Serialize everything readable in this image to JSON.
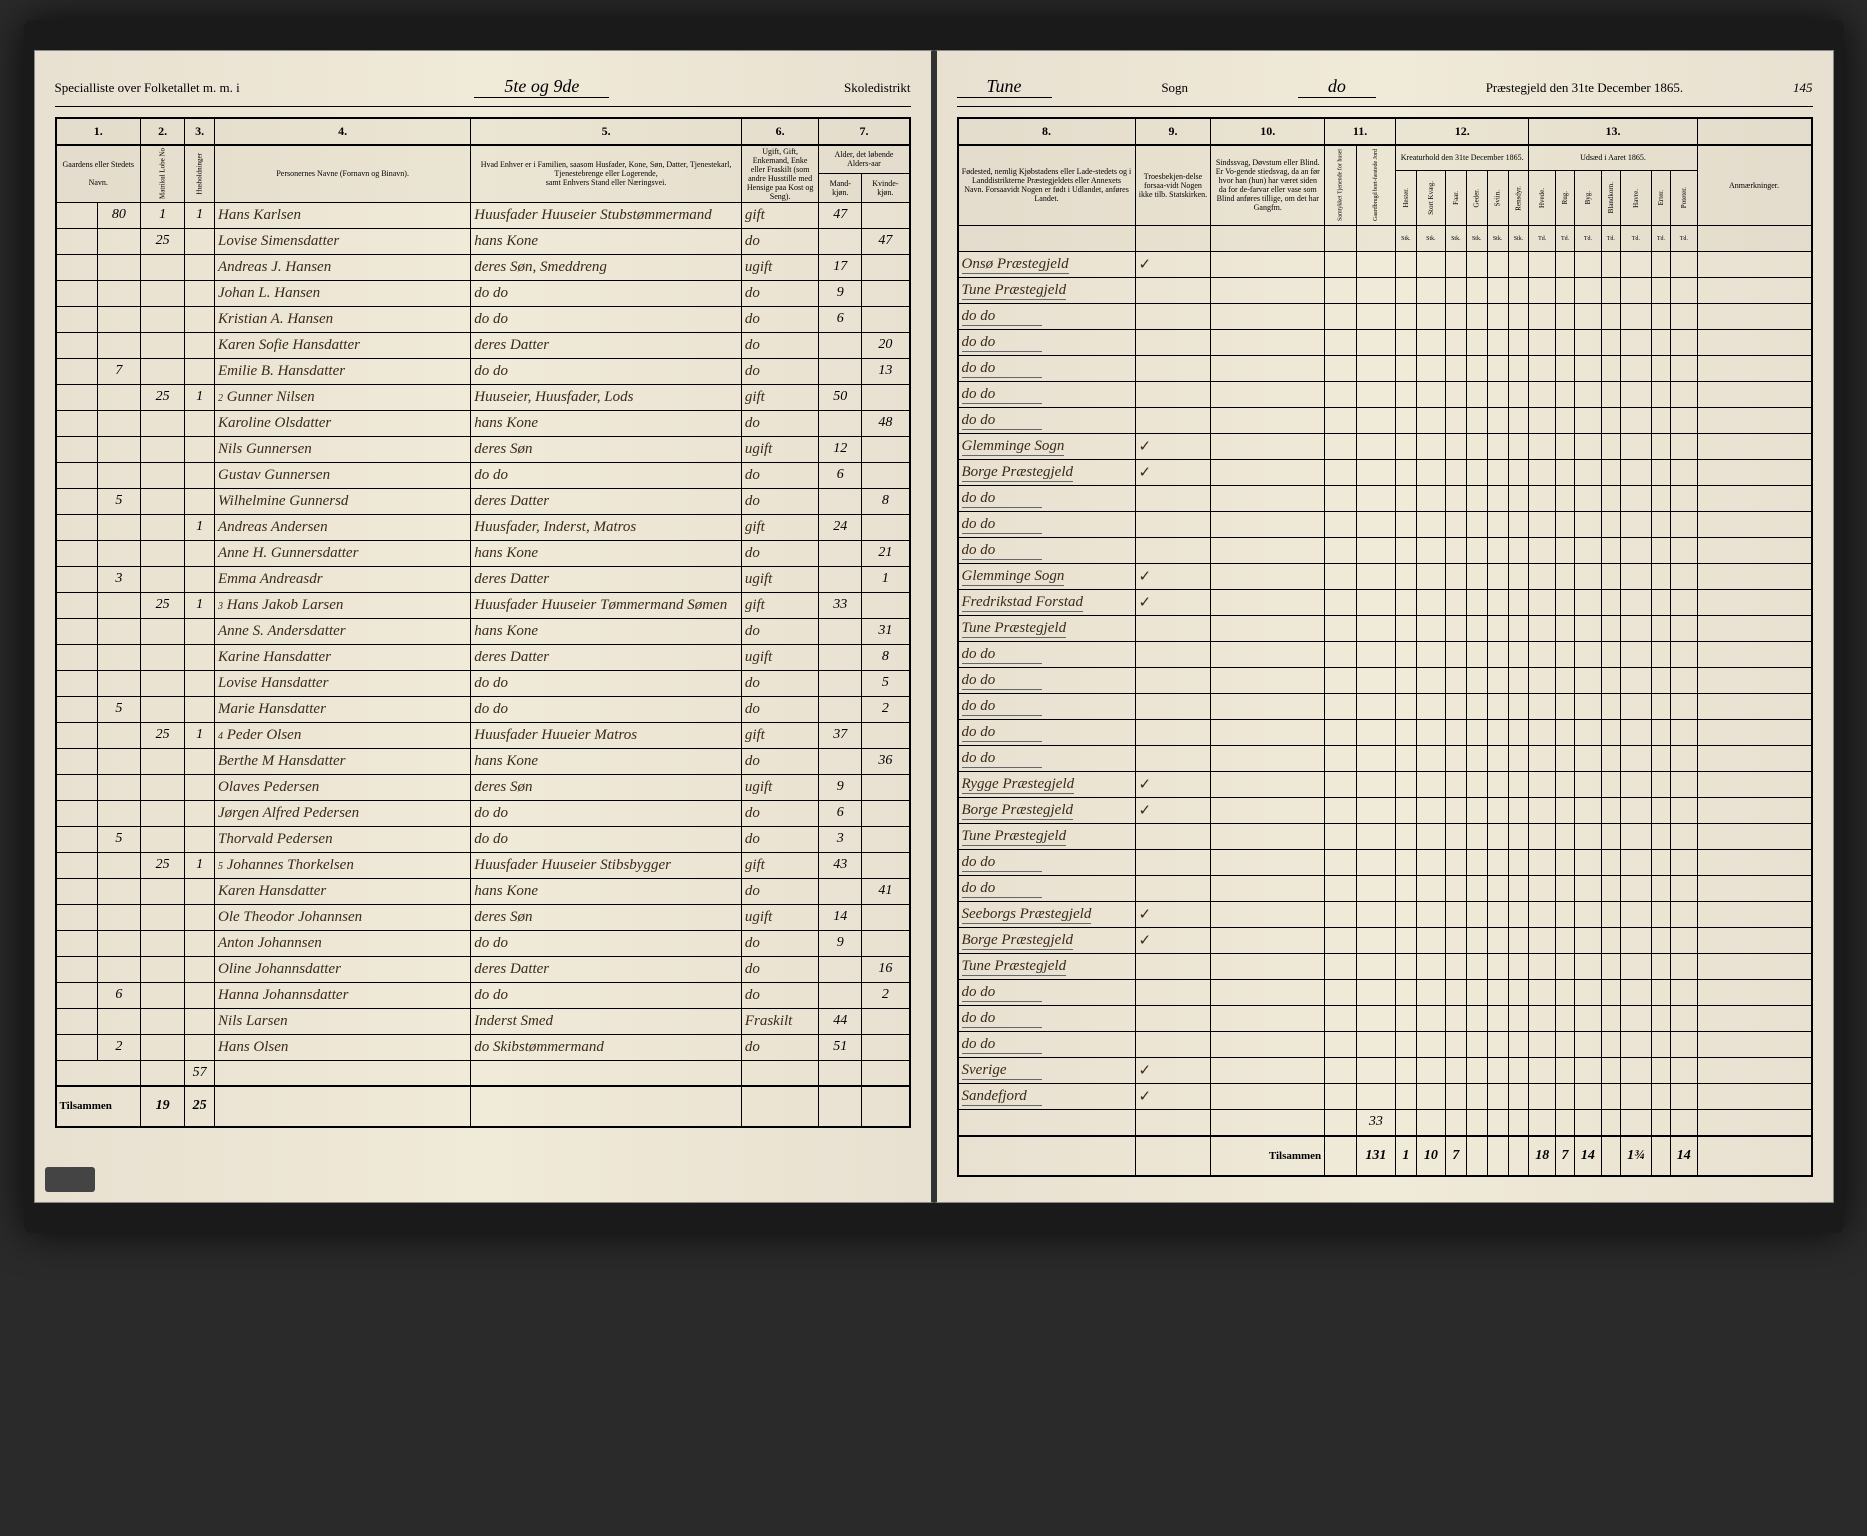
{
  "header": {
    "left_prefix": "Specialliste over Folketallet m. m. i",
    "district": "5te og 9de",
    "left_suffix": "Skoledistrikt",
    "right_sogn_label": "Sogn",
    "sogn": "Tune",
    "do": "do",
    "right_suffix": "Præstegjeld den 31te December 1865.",
    "page_num": "145"
  },
  "columns_left": {
    "c1": "1.",
    "c2": "2.",
    "c3": "3.",
    "c4": "4.",
    "c5": "5.",
    "c6": "6.",
    "c7": "7.",
    "h1": "Gaardens eller Stedets",
    "h1b": "Navn.",
    "h2a": "Matrikul Lobe No",
    "h2b": "Husholdninger",
    "h3": "Personernes Navne (Fornavn og Binavn).",
    "h4a": "Hvad Enhver er i Familien, saasom Husfader, Kone, Søn, Datter, Tjenestekarl, Tjenestebrenge eller Logerende,",
    "h4b": "samt Enhvers Stand eller Næringsvei.",
    "h5a": "Ugift, Gift, Enkemand, Enke eller Fraskilt (som andre Husstille med Hensige paa Kost og Seng).",
    "h6a": "Alder, det løbende Alders-aar",
    "h6b": "Mand-kjøn.",
    "h6c": "Kvinde-kjøn."
  },
  "columns_right": {
    "c8": "8.",
    "c9": "9.",
    "c10": "10.",
    "c11": "11.",
    "c12": "12.",
    "c13": "13.",
    "h8": "Fødested, nemlig Kjøbstadens eller Lade-stedets og i Landdistrikterne Præstegjeldets eller Annexets Navn. Forsaavidt Nogen er født i Udlandet, anføres Landet.",
    "h9": "Troesbekjen-delse forsaa-vidt Nogen ikke tilb. Statskirken.",
    "h10": "Sindssvag, Døvstum eller Blind. Er Vo-gende stiedsvag, da an før hvor han (hun) har været siden da for de-farvar eller vase som Blind anføres tillige, om det har Gangfm.",
    "h11a": "Samtykket Tjenende for huset",
    "h11b": "Gaardbrugd bort-fæstede Jord",
    "h12": "Kreaturhold den 31te December 1865.",
    "h12a": "Hester.",
    "h12b": "Stort Kvæg.",
    "h12c": "Faar.",
    "h12d": "Geder.",
    "h12e": "Sviin.",
    "h12f": "Rensdyr.",
    "h13": "Udsæd i Aaret 1865.",
    "h13a": "Hvede.",
    "h13b": "Rug.",
    "h13c": "Byg.",
    "h13d": "Blandkorn.",
    "h13e": "Havre.",
    "h13f": "Erter.",
    "h13g": "Poteter.",
    "h14": "Anmærkninger."
  },
  "rows": [
    {
      "lno": "80",
      "hh": "1",
      "m": "1",
      "name": "Hans Karlsen",
      "rel": "Huusfader Huuseier Stubstømmermand",
      "stat": "gift",
      "age_m": "47",
      "age_k": "",
      "birth": "Onsø Præstegjeld",
      "chk": "✓"
    },
    {
      "lno": "",
      "hh": "25",
      "m": "",
      "name": "Lovise Simensdatter",
      "rel": "hans Kone",
      "stat": "do",
      "age_m": "",
      "age_k": "47",
      "birth": "Tune Præstegjeld",
      "chk": ""
    },
    {
      "lno": "",
      "hh": "",
      "m": "",
      "name": "Andreas J. Hansen",
      "rel": "deres Søn, Smeddreng",
      "stat": "ugift",
      "age_m": "17",
      "age_k": "",
      "birth": "do   do",
      "chk": ""
    },
    {
      "lno": "",
      "hh": "",
      "m": "",
      "name": "Johan L. Hansen",
      "rel": "do   do",
      "stat": "do",
      "age_m": "9",
      "age_k": "",
      "birth": "do   do",
      "chk": ""
    },
    {
      "lno": "",
      "hh": "",
      "m": "",
      "name": "Kristian A. Hansen",
      "rel": "do   do",
      "stat": "do",
      "age_m": "6",
      "age_k": "",
      "birth": "do   do",
      "chk": ""
    },
    {
      "lno": "",
      "hh": "",
      "m": "",
      "name": "Karen Sofie Hansdatter",
      "rel": "deres Datter",
      "stat": "do",
      "age_m": "",
      "age_k": "20",
      "birth": "do   do",
      "chk": ""
    },
    {
      "lno": "7",
      "hh": "",
      "m": "",
      "name": "Emilie B. Hansdatter",
      "rel": "do   do",
      "stat": "do",
      "age_m": "",
      "age_k": "13",
      "birth": "do   do",
      "chk": ""
    },
    {
      "lno": "",
      "hh": "25",
      "m": "1",
      "name2": "2",
      "name": "Gunner Nilsen",
      "rel": "Huuseier, Huusfader, Lods",
      "stat": "gift",
      "age_m": "50",
      "age_k": "",
      "birth": "Glemminge Sogn",
      "chk": "✓"
    },
    {
      "lno": "",
      "hh": "",
      "m": "",
      "name": "Karoline Olsdatter",
      "rel": "hans Kone",
      "stat": "do",
      "age_m": "",
      "age_k": "48",
      "birth": "Borge Præstegjeld",
      "chk": "✓"
    },
    {
      "lno": "",
      "hh": "",
      "m": "",
      "name": "Nils Gunnersen",
      "rel": "deres Søn",
      "stat": "ugift",
      "age_m": "12",
      "age_k": "",
      "birth": "do   do",
      "chk": ""
    },
    {
      "lno": "",
      "hh": "",
      "m": "",
      "name": "Gustav Gunnersen",
      "rel": "do   do",
      "stat": "do",
      "age_m": "6",
      "age_k": "",
      "birth": "do   do",
      "chk": ""
    },
    {
      "lno": "5",
      "hh": "",
      "m": "",
      "name": "Wilhelmine Gunnersd",
      "rel": "deres Datter",
      "stat": "do",
      "age_m": "",
      "age_k": "8",
      "birth": "do   do",
      "chk": ""
    },
    {
      "lno": "",
      "hh": "",
      "m": "1",
      "name": "Andreas Andersen",
      "rel": "Huusfader, Inderst, Matros",
      "stat": "gift",
      "age_m": "24",
      "age_k": "",
      "birth": "Glemminge Sogn",
      "chk": "✓"
    },
    {
      "lno": "",
      "hh": "",
      "m": "",
      "name": "Anne H. Gunnersdatter",
      "rel": "hans Kone",
      "stat": "do",
      "age_m": "",
      "age_k": "21",
      "birth": "Fredrikstad Forstad",
      "chk": "✓"
    },
    {
      "lno": "3",
      "hh": "",
      "m": "",
      "name": "Emma Andreasdr",
      "rel": "deres Datter",
      "stat": "ugift",
      "age_m": "",
      "age_k": "1",
      "birth": "Tune Præstegjeld",
      "chk": ""
    },
    {
      "lno": "",
      "hh": "25",
      "m": "1",
      "name2": "3",
      "name": "Hans Jakob Larsen",
      "rel": "Huusfader Huuseier Tømmermand Sømen",
      "stat": "gift",
      "age_m": "33",
      "age_k": "",
      "birth": "do   do",
      "chk": ""
    },
    {
      "lno": "",
      "hh": "",
      "m": "",
      "name": "Anne S. Andersdatter",
      "rel": "hans Kone",
      "stat": "do",
      "age_m": "",
      "age_k": "31",
      "birth": "do   do",
      "chk": ""
    },
    {
      "lno": "",
      "hh": "",
      "m": "",
      "name": "Karine Hansdatter",
      "rel": "deres Datter",
      "stat": "ugift",
      "age_m": "",
      "age_k": "8",
      "birth": "do   do",
      "chk": ""
    },
    {
      "lno": "",
      "hh": "",
      "m": "",
      "name": "Lovise Hansdatter",
      "rel": "do   do",
      "stat": "do",
      "age_m": "",
      "age_k": "5",
      "birth": "do   do",
      "chk": ""
    },
    {
      "lno": "5",
      "hh": "",
      "m": "",
      "name": "Marie Hansdatter",
      "rel": "do   do",
      "stat": "do",
      "age_m": "",
      "age_k": "2",
      "birth": "do   do",
      "chk": ""
    },
    {
      "lno": "",
      "hh": "25",
      "m": "1",
      "name2": "4",
      "name": "Peder Olsen",
      "rel": "Huusfader Huueier Matros",
      "stat": "gift",
      "age_m": "37",
      "age_k": "",
      "birth": "Rygge Præstegjeld",
      "chk": "✓"
    },
    {
      "lno": "",
      "hh": "",
      "m": "",
      "name": "Berthe M Hansdatter",
      "rel": "hans Kone",
      "stat": "do",
      "age_m": "",
      "age_k": "36",
      "birth": "Borge Præstegjeld",
      "chk": "✓"
    },
    {
      "lno": "",
      "hh": "",
      "m": "",
      "name": "Olaves Pedersen",
      "rel": "deres Søn",
      "stat": "ugift",
      "age_m": "9",
      "age_k": "",
      "birth": "Tune Præstegjeld",
      "chk": ""
    },
    {
      "lno": "",
      "hh": "",
      "m": "",
      "name": "Jørgen Alfred Pedersen",
      "rel": "do   do",
      "stat": "do",
      "age_m": "6",
      "age_k": "",
      "birth": "do   do",
      "chk": ""
    },
    {
      "lno": "5",
      "hh": "",
      "m": "",
      "name": "Thorvald Pedersen",
      "rel": "do   do",
      "stat": "do",
      "age_m": "3",
      "age_k": "",
      "birth": "do   do",
      "chk": ""
    },
    {
      "lno": "",
      "hh": "25",
      "m": "1",
      "name2": "5",
      "name": "Johannes Thorkelsen",
      "rel": "Huusfader Huuseier Stibsbygger",
      "stat": "gift",
      "age_m": "43",
      "age_k": "",
      "birth": "Seeborgs Præstegjeld",
      "chk": "✓"
    },
    {
      "lno": "",
      "hh": "",
      "m": "",
      "name": "Karen Hansdatter",
      "rel": "hans Kone",
      "stat": "do",
      "age_m": "",
      "age_k": "41",
      "birth": "Borge Præstegjeld",
      "chk": "✓"
    },
    {
      "lno": "",
      "hh": "",
      "m": "",
      "name": "Ole Theodor Johannsen",
      "rel": "deres Søn",
      "stat": "ugift",
      "age_m": "14",
      "age_k": "",
      "birth": "Tune Præstegjeld",
      "chk": ""
    },
    {
      "lno": "",
      "hh": "",
      "m": "",
      "name": "Anton Johannsen",
      "rel": "do   do",
      "stat": "do",
      "age_m": "9",
      "age_k": "",
      "birth": "do   do",
      "chk": ""
    },
    {
      "lno": "",
      "hh": "",
      "m": "",
      "name": "Oline Johannsdatter",
      "rel": "deres Datter",
      "stat": "do",
      "age_m": "",
      "age_k": "16",
      "birth": "do   do",
      "chk": ""
    },
    {
      "lno": "6",
      "hh": "",
      "m": "",
      "name": "Hanna Johannsdatter",
      "rel": "do   do",
      "stat": "do",
      "age_m": "",
      "age_k": "2",
      "birth": "do   do",
      "chk": ""
    },
    {
      "lno": "",
      "hh": "",
      "m": "",
      "name": "Nils Larsen",
      "rel": "Inderst Smed",
      "stat": "Fraskilt",
      "age_m": "44",
      "age_k": "",
      "birth": "Sverige",
      "chk": "✓"
    },
    {
      "lno": "2",
      "hh": "",
      "m": "",
      "name": "Hans Olsen",
      "rel": "do Skibstømmermand",
      "stat": "do",
      "age_m": "51",
      "age_k": "",
      "birth": "Sandefjord",
      "chk": "✓"
    }
  ],
  "footer": {
    "label_left": "Tilsammen",
    "label_right": "Tilsammen",
    "sum1": "57",
    "sum2": "19",
    "sum3": "25",
    "r_sub": "33",
    "r1": "131",
    "r2": "1",
    "r3": "10",
    "r4": "7",
    "r5": "18",
    "r6": "7",
    "r7": "14",
    "r8": "1¾",
    "r9": "14"
  }
}
